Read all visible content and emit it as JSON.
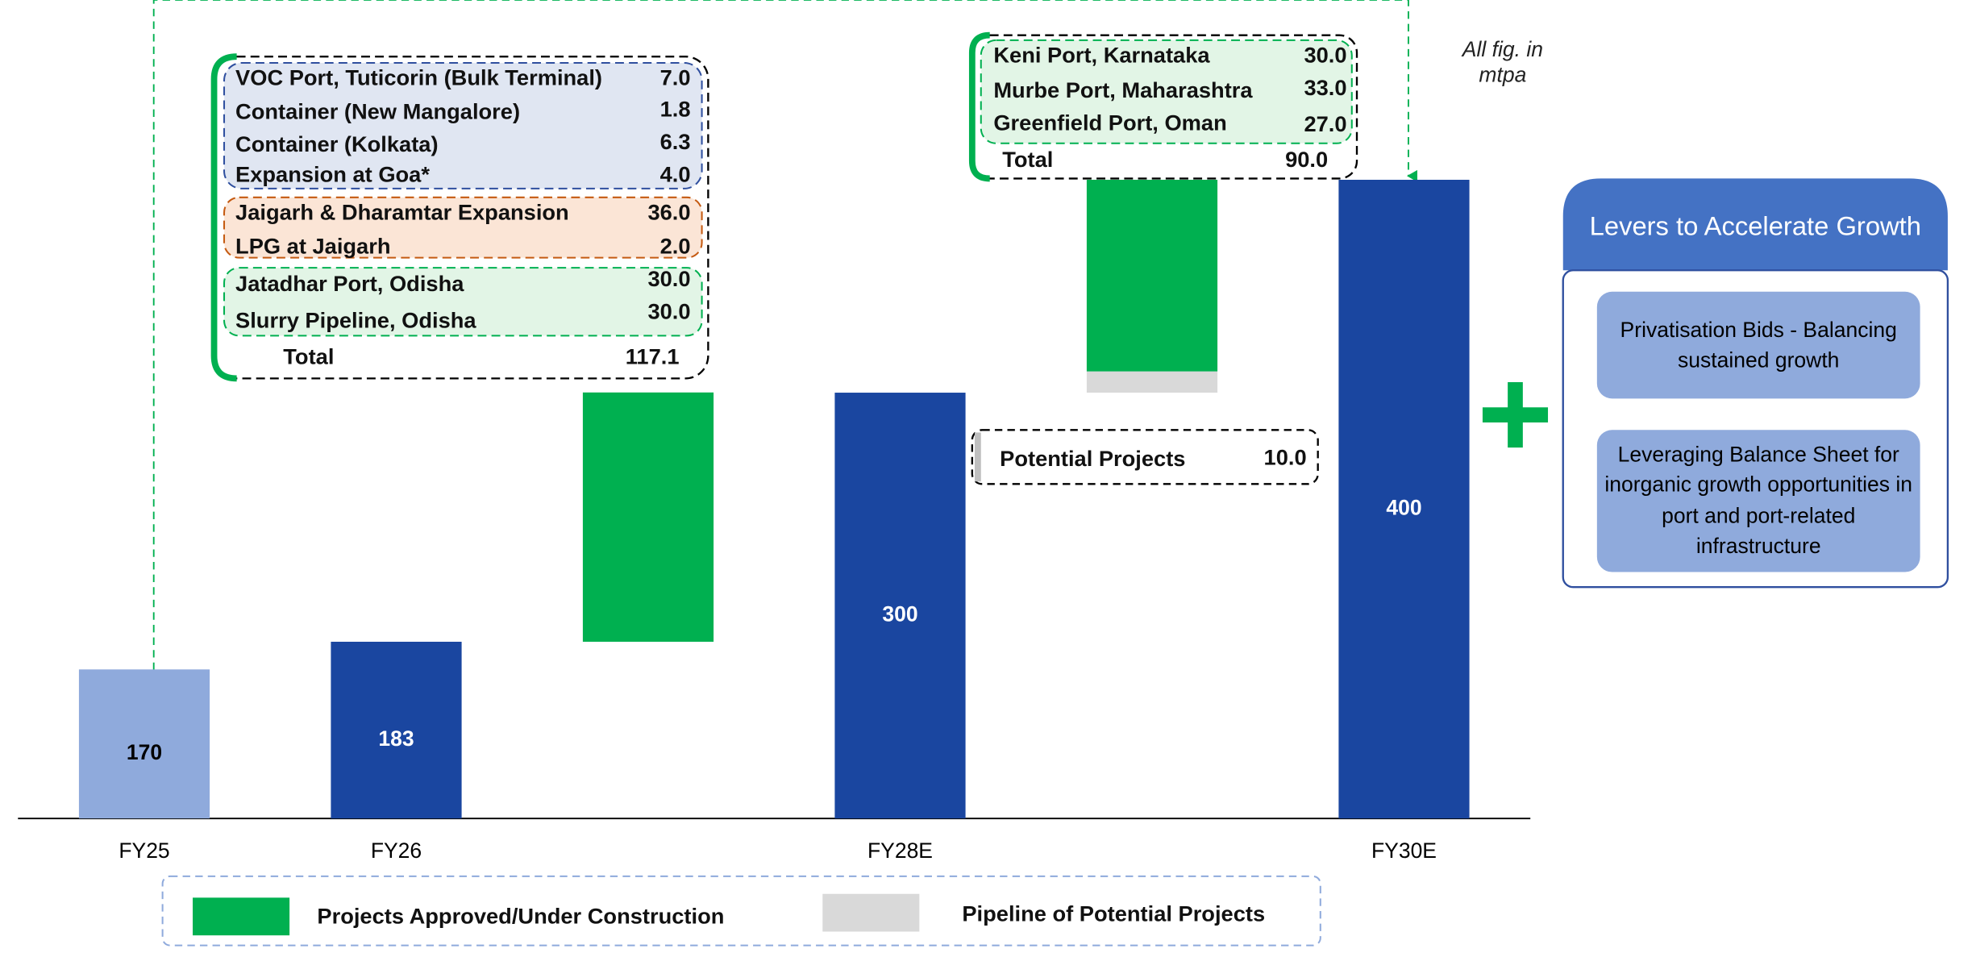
{
  "chart_data": {
    "type": "waterfall",
    "categories": [
      "FY25",
      "FY26",
      null,
      "FY28E",
      null,
      "FY30E"
    ],
    "totals": [
      170,
      183,
      null,
      300,
      null,
      400
    ],
    "total_colors": [
      "#8faadc",
      "#1a46a0",
      null,
      "#1a46a0",
      null,
      "#1a46a0"
    ],
    "series": [
      {
        "name": "Projects Approved/Under Construction",
        "color": "#00b050",
        "values": [
          null,
          null,
          117.1,
          null,
          90,
          null
        ],
        "value_labels": [
          null,
          null,
          "117.1",
          null,
          "90.0",
          null
        ]
      },
      {
        "name": "Pipeline of Potential Projects",
        "color": "#d9d9d9",
        "values": [
          null,
          null,
          null,
          null,
          10,
          null
        ],
        "value_labels": [
          null,
          null,
          null,
          null,
          "10.0",
          null
        ]
      }
    ],
    "ylim": [
      100,
      400
    ],
    "note": "All fig. in mtpa",
    "box_fy27": {
      "groups": [
        {
          "items": [
            [
              "VOC Port, Tuticorin (Bulk Terminal)",
              "7.0"
            ],
            [
              "Container (New Mangalore)",
              "1.8"
            ],
            [
              "Container (Kolkata)",
              "6.3"
            ],
            [
              "Expansion at Goa*",
              "4.0"
            ]
          ]
        },
        {
          "items": [
            [
              "Jaigarh & Dharamtar Expansion",
              "36.0"
            ],
            [
              "LPG at Jaigarh",
              "2.0"
            ]
          ]
        },
        {
          "items": [
            [
              "Jatadhar Port, Odisha",
              "30.0"
            ],
            [
              "Slurry Pipeline, Odisha",
              "30.0"
            ]
          ]
        }
      ],
      "total_text": "Total"
    },
    "box_fy29": {
      "groups": [
        {
          "items": [
            [
              "Keni Port, Karnataka",
              "30.0"
            ],
            [
              "Murbe Port, Maharashtra",
              "33.0"
            ],
            [
              "Greenfield Port, Oman",
              "27.0"
            ]
          ]
        }
      ],
      "total_text": "Total",
      "potential_text": "Potential Projects"
    },
    "levers": {
      "title": "Levers to Accelerate Growth",
      "items": [
        "Privatisation Bids - Balancing sustained growth",
        "Leveraging Balance Sheet for inorganic growth opportunities in port and port-related infrastructure"
      ]
    }
  }
}
